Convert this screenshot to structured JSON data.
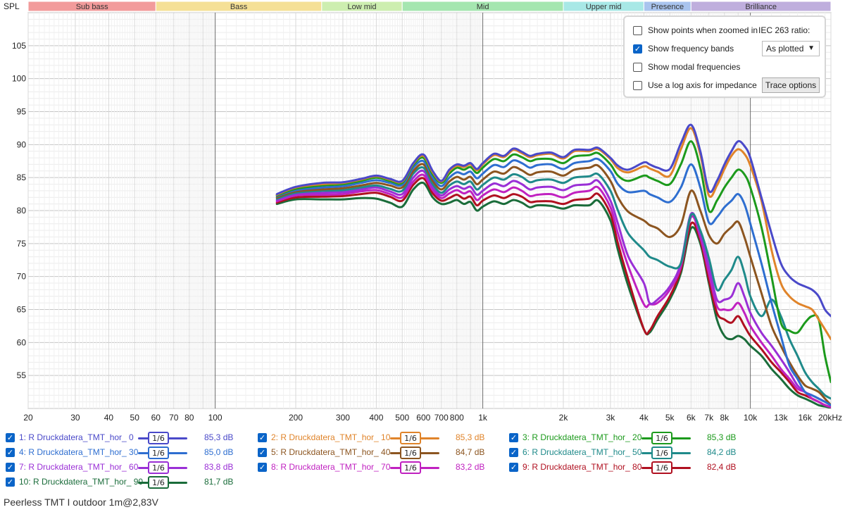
{
  "chart_data": {
    "type": "line",
    "ylabel": "SPL",
    "x_scale": "log",
    "xlim": [
      20,
      20000
    ],
    "ylim": [
      50,
      110
    ],
    "x_ticks": [
      {
        "v": 20,
        "label": "20"
      },
      {
        "v": 30,
        "label": "30"
      },
      {
        "v": 40,
        "label": "40"
      },
      {
        "v": 50,
        "label": "50"
      },
      {
        "v": 60,
        "label": "60"
      },
      {
        "v": 70,
        "label": "70"
      },
      {
        "v": 80,
        "label": "80"
      },
      {
        "v": 100,
        "label": "100"
      },
      {
        "v": 200,
        "label": "200"
      },
      {
        "v": 300,
        "label": "300"
      },
      {
        "v": 400,
        "label": "400"
      },
      {
        "v": 500,
        "label": "500"
      },
      {
        "v": 600,
        "label": "600"
      },
      {
        "v": 700,
        "label": "700"
      },
      {
        "v": 800,
        "label": "800"
      },
      {
        "v": 1000,
        "label": "1k"
      },
      {
        "v": 2000,
        "label": "2k"
      },
      {
        "v": 3000,
        "label": "3k"
      },
      {
        "v": 4000,
        "label": "4k"
      },
      {
        "v": 5000,
        "label": "5k"
      },
      {
        "v": 6000,
        "label": "6k"
      },
      {
        "v": 7000,
        "label": "7k"
      },
      {
        "v": 8000,
        "label": "8k"
      },
      {
        "v": 10000,
        "label": "10k"
      },
      {
        "v": 13000,
        "label": "13k"
      },
      {
        "v": 16000,
        "label": "16k"
      },
      {
        "v": 20000,
        "label": "20kHz"
      }
    ],
    "y_ticks": [
      55,
      60,
      65,
      70,
      75,
      80,
      85,
      90,
      95,
      100,
      105
    ],
    "bands": [
      {
        "name": "Sub bass",
        "from": 20,
        "to": 60,
        "color": "#f29b9b"
      },
      {
        "name": "Bass",
        "from": 60,
        "to": 250,
        "color": "#f5e096"
      },
      {
        "name": "Low mid",
        "from": 250,
        "to": 500,
        "color": "#cdeeb0"
      },
      {
        "name": "Mid",
        "from": 500,
        "to": 2000,
        "color": "#a5e6b0"
      },
      {
        "name": "Upper mid",
        "from": 2000,
        "to": 4000,
        "color": "#a8e8e6"
      },
      {
        "name": "Presence",
        "from": 4000,
        "to": 6000,
        "color": "#a9c4ee"
      },
      {
        "name": "Brilliance",
        "from": 6000,
        "to": 20000,
        "color": "#bfaedd"
      }
    ],
    "x": [
      170,
      200,
      250,
      300,
      350,
      400,
      450,
      500,
      550,
      600,
      650,
      700,
      750,
      800,
      850,
      900,
      950,
      1000,
      1100,
      1200,
      1300,
      1400,
      1500,
      1600,
      1800,
      2000,
      2200,
      2500,
      2700,
      3000,
      3200,
      3500,
      4000,
      4200,
      4500,
      5000,
      5500,
      6000,
      6500,
      7000,
      7500,
      8000,
      8500,
      9000,
      9500,
      10000,
      11000,
      12000,
      13000,
      14000,
      15000,
      16000,
      17000,
      18000,
      19000,
      20000
    ],
    "series": [
      {
        "name": "1: R Druckdatera_TMT_hor_ 0",
        "color": "#4a49c9",
        "level": "85,3 dB",
        "values": [
          82.5,
          83.6,
          84.2,
          84.3,
          84.8,
          85.3,
          84.8,
          84.5,
          87.2,
          88.5,
          86.0,
          84.5,
          86.2,
          87.0,
          86.8,
          87.2,
          86.3,
          87.2,
          88.6,
          88.3,
          89.4,
          88.9,
          88.3,
          88.6,
          88.8,
          88.1,
          89.2,
          89.2,
          89.5,
          88.0,
          86.8,
          86.2,
          87.3,
          87.0,
          86.5,
          86.3,
          90.2,
          93.0,
          89.0,
          83.0,
          84.5,
          87.0,
          89.0,
          90.5,
          89.8,
          88.0,
          82.0,
          76.5,
          72.0,
          70.0,
          69.0,
          68.5,
          68.0,
          67.0,
          65.0,
          64.0
        ]
      },
      {
        "name": "2: R Druckdatera_TMT_hor_ 10",
        "color": "#e0842a",
        "level": "85,3 dB",
        "values": [
          82.4,
          83.5,
          84.0,
          84.2,
          84.7,
          85.2,
          84.7,
          84.4,
          87.1,
          88.3,
          85.8,
          84.4,
          86.0,
          86.8,
          86.6,
          87.0,
          86.1,
          87.0,
          88.4,
          88.1,
          89.2,
          88.7,
          88.1,
          88.4,
          88.6,
          87.9,
          89.0,
          89.0,
          89.3,
          87.8,
          86.4,
          85.8,
          86.7,
          86.4,
          85.9,
          85.3,
          89.3,
          92.5,
          88.5,
          82.3,
          83.8,
          86.3,
          88.3,
          89.3,
          88.6,
          86.8,
          81.5,
          74.0,
          69.0,
          67.0,
          66.0,
          65.5,
          65.0,
          63.5,
          62.0,
          60.5
        ]
      },
      {
        "name": "3: R Druckdatera_TMT_hor_ 20",
        "color": "#1c9a1c",
        "level": "85,3 dB",
        "values": [
          82.3,
          83.3,
          83.8,
          84.0,
          84.5,
          85.0,
          84.5,
          84.2,
          86.9,
          88.0,
          85.5,
          84.2,
          85.6,
          86.5,
          86.2,
          86.6,
          85.7,
          86.5,
          87.8,
          87.5,
          88.5,
          88.1,
          87.5,
          87.8,
          87.8,
          87.2,
          88.2,
          88.4,
          88.7,
          87.0,
          85.3,
          84.5,
          85.3,
          85.0,
          84.5,
          84.0,
          87.0,
          90.5,
          86.5,
          80.0,
          81.5,
          83.5,
          85.0,
          86.2,
          85.5,
          83.5,
          77.5,
          70.0,
          63.0,
          61.8,
          61.5,
          63.0,
          64.0,
          63.5,
          58.0,
          54.0
        ]
      },
      {
        "name": "4: R Druckdatera_TMT_hor_ 30",
        "color": "#2e6ed0",
        "level": "85,0 dB",
        "values": [
          82.2,
          83.1,
          83.5,
          83.7,
          84.2,
          84.6,
          84.2,
          83.9,
          86.5,
          87.5,
          85.0,
          83.7,
          85.0,
          85.8,
          85.5,
          85.9,
          84.9,
          85.6,
          86.9,
          86.6,
          87.6,
          87.2,
          86.5,
          86.9,
          87.0,
          86.3,
          87.2,
          87.5,
          87.8,
          86.0,
          84.0,
          82.8,
          83.0,
          82.5,
          82.0,
          81.3,
          83.5,
          87.0,
          83.5,
          78.2,
          79.0,
          80.5,
          81.5,
          82.5,
          81.0,
          78.0,
          72.0,
          66.0,
          61.0,
          56.5,
          54.5,
          52.5,
          52.0,
          51.5,
          51.0,
          50.5
        ]
      },
      {
        "name": "5: R Druckdatera_TMT_hor_ 40",
        "color": "#8c5520",
        "level": "84,7 dB",
        "values": [
          82.0,
          82.9,
          83.2,
          83.4,
          83.8,
          84.2,
          83.8,
          83.5,
          86.0,
          87.0,
          84.5,
          83.2,
          84.4,
          85.1,
          84.7,
          85.1,
          84.0,
          84.7,
          85.9,
          85.6,
          86.6,
          86.1,
          85.4,
          85.8,
          85.9,
          85.3,
          86.2,
          86.5,
          86.8,
          84.5,
          82.0,
          79.8,
          78.5,
          77.8,
          77.3,
          76.0,
          77.8,
          83.0,
          80.0,
          76.3,
          75.0,
          76.5,
          77.5,
          78.3,
          76.0,
          73.0,
          67.5,
          62.5,
          59.5,
          57.0,
          55.0,
          53.5,
          53.0,
          52.5,
          51.5,
          50.5
        ]
      },
      {
        "name": "6: R Druckdatera_TMT_hor_ 50",
        "color": "#1f8a8a",
        "level": "84,2 dB",
        "values": [
          81.8,
          82.7,
          83.0,
          83.1,
          83.5,
          83.8,
          83.3,
          83.0,
          85.6,
          86.5,
          84.0,
          82.7,
          83.8,
          84.4,
          84.0,
          84.4,
          83.2,
          83.9,
          85.0,
          84.7,
          85.5,
          85.1,
          84.3,
          84.6,
          84.7,
          84.2,
          85.0,
          85.2,
          85.5,
          83.0,
          80.0,
          76.5,
          74.0,
          73.0,
          72.5,
          71.5,
          72.0,
          79.3,
          77.0,
          72.8,
          68.0,
          69.5,
          71.0,
          73.0,
          70.5,
          67.0,
          64.0,
          66.5,
          64.0,
          60.5,
          58.0,
          55.5,
          54.0,
          53.0,
          52.0,
          51.5
        ]
      },
      {
        "name": "7: R Druckdatera_TMT_hor_ 60",
        "color": "#9a2fd6",
        "level": "83,8 dB",
        "values": [
          81.6,
          82.5,
          82.7,
          82.8,
          83.2,
          83.5,
          82.9,
          82.5,
          85.0,
          86.0,
          83.5,
          82.3,
          83.2,
          83.7,
          83.3,
          83.6,
          82.4,
          83.0,
          84.1,
          83.7,
          84.5,
          84.0,
          83.2,
          83.5,
          83.6,
          83.1,
          83.8,
          84.0,
          84.5,
          81.5,
          78.0,
          73.0,
          69.0,
          66.0,
          66.5,
          68.5,
          72.0,
          79.5,
          76.5,
          71.5,
          66.5,
          66.5,
          67.0,
          69.0,
          67.0,
          64.5,
          61.5,
          59.5,
          57.5,
          55.5,
          53.5,
          52.5,
          52.0,
          51.5,
          51.0,
          50.5
        ]
      },
      {
        "name": "8: R Druckdatera_TMT_hor_ 70",
        "color": "#c021c0",
        "level": "83,2 dB",
        "values": [
          81.4,
          82.3,
          82.4,
          82.5,
          82.9,
          83.1,
          82.5,
          82.0,
          84.4,
          85.4,
          83.1,
          81.9,
          82.6,
          83.1,
          82.6,
          82.9,
          81.6,
          82.3,
          83.2,
          82.8,
          83.5,
          83.0,
          82.2,
          82.4,
          82.5,
          82.0,
          82.7,
          83.0,
          83.5,
          80.5,
          76.5,
          71.5,
          65.8,
          65.8,
          66.0,
          68.0,
          71.5,
          79.0,
          76.0,
          70.5,
          65.5,
          65.0,
          65.0,
          66.0,
          64.5,
          62.5,
          60.0,
          58.0,
          56.0,
          54.5,
          53.0,
          52.5,
          51.5,
          51.0,
          50.5,
          50.2
        ]
      },
      {
        "name": "9: R Druckdatera_TMT_hor_ 80",
        "color": "#b01020",
        "level": "82,4 dB",
        "values": [
          81.2,
          82.0,
          82.1,
          82.2,
          82.5,
          82.7,
          82.1,
          81.5,
          83.9,
          84.9,
          82.6,
          81.5,
          81.9,
          82.4,
          81.8,
          82.1,
          80.8,
          81.5,
          82.3,
          81.9,
          82.5,
          82.1,
          81.3,
          81.4,
          81.4,
          81.0,
          81.6,
          81.8,
          82.5,
          79.5,
          75.0,
          69.5,
          62.0,
          61.8,
          64.0,
          67.0,
          71.0,
          78.0,
          75.5,
          69.5,
          64.5,
          63.5,
          63.0,
          64.0,
          62.5,
          61.0,
          59.0,
          57.0,
          55.5,
          54.0,
          52.5,
          52.0,
          51.5,
          51.0,
          50.5,
          50.2
        ]
      },
      {
        "name": "10: R Druckdatera_TMT_hor_ 90",
        "color": "#1a6c3a",
        "level": "81,7 dB",
        "values": [
          81.0,
          81.7,
          81.7,
          81.7,
          81.9,
          81.8,
          81.2,
          80.6,
          83.2,
          84.2,
          82.0,
          81.0,
          81.2,
          81.6,
          81.0,
          81.3,
          80.0,
          80.6,
          81.4,
          81.0,
          81.6,
          81.2,
          80.5,
          80.8,
          80.7,
          80.3,
          80.8,
          80.8,
          81.5,
          78.5,
          74.0,
          68.5,
          62.0,
          61.5,
          63.5,
          66.5,
          70.5,
          77.3,
          75.0,
          69.0,
          63.5,
          61.0,
          60.5,
          61.0,
          60.5,
          59.5,
          58.0,
          56.0,
          54.5,
          53.0,
          52.0,
          51.5,
          51.0,
          50.5,
          50.3,
          50.1
        ]
      }
    ]
  },
  "options": {
    "show_points": "Show points when zoomed in",
    "show_bands": "Show frequency bands",
    "show_modal": "Show modal frequencies",
    "log_impedance": "Use a log axis for impedance",
    "iec_label": "IEC 263 ratio:",
    "iec_value": "As plotted",
    "trace_button": "Trace options"
  },
  "smoothing_label": "1/6",
  "footer_title": "Peerless TMT I outdoor 1m@2,83V"
}
